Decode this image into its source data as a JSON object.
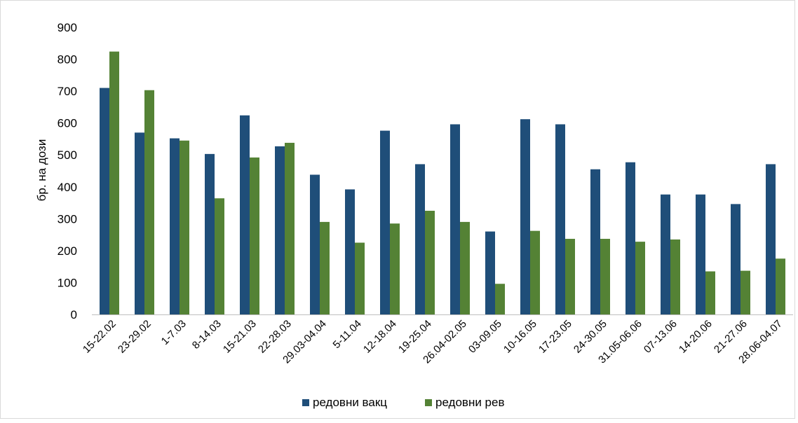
{
  "chart_data": {
    "type": "bar",
    "title": "",
    "xlabel": "",
    "ylabel": "бр. на дози",
    "ylim": [
      0,
      900
    ],
    "yticks": [
      0,
      100,
      200,
      300,
      400,
      500,
      600,
      700,
      800,
      900
    ],
    "grid": false,
    "legend_position": "bottom",
    "categories": [
      "15-22.02",
      "23-29.02",
      "1-7.03",
      "8-14.03",
      "15-21.03",
      "22-28.03",
      "29.03-04.04",
      "5-11.04",
      "12-18.04",
      "19-25.04",
      "26.04-02.05",
      "03-09.05",
      "10-16.05",
      "17-23.05",
      "24-30.05",
      "31.05-06.06",
      "07-13.06",
      "14-20.06",
      "21-27.06",
      "28.06-04.07"
    ],
    "series": [
      {
        "name": "редовни вакц",
        "color": "#1f4e79",
        "values": [
          710,
          570,
          552,
          503,
          624,
          527,
          438,
          392,
          576,
          471,
          596,
          260,
          612,
          596,
          455,
          477,
          376,
          376,
          346,
          471
        ]
      },
      {
        "name": "редовни рев",
        "color": "#548235",
        "values": [
          824,
          703,
          545,
          364,
          492,
          538,
          290,
          225,
          285,
          325,
          290,
          96,
          262,
          237,
          237,
          228,
          235,
          135,
          137,
          175
        ]
      }
    ]
  }
}
